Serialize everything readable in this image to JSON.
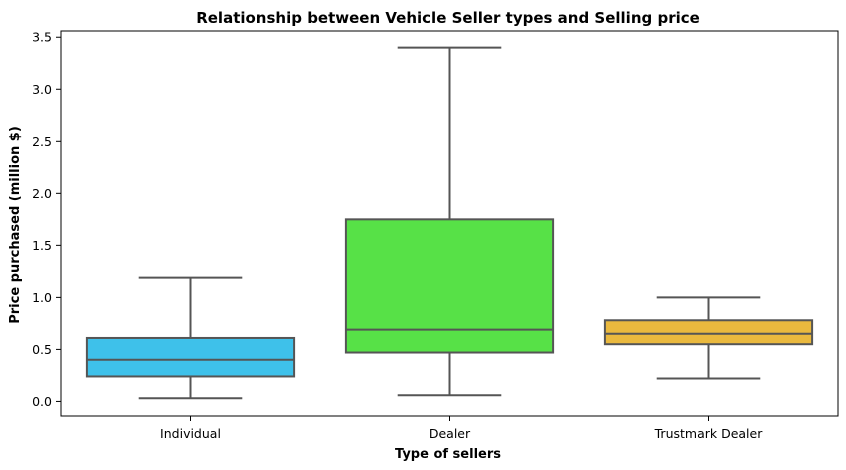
{
  "chart_data": {
    "type": "box",
    "title": "Relationship between Vehicle Seller types and Selling price",
    "xlabel": "Type of sellers",
    "ylabel": "Price purchased (million $)",
    "ylim": [
      -0.14,
      3.56
    ],
    "yticks": [
      0.0,
      0.5,
      1.0,
      1.5,
      2.0,
      2.5,
      3.0,
      3.5
    ],
    "ytick_labels": [
      "0.0",
      "0.5",
      "1.0",
      "1.5",
      "2.0",
      "2.5",
      "3.0",
      "3.5"
    ],
    "categories": [
      "Individual",
      "Dealer",
      "Trustmark Dealer"
    ],
    "boxes": [
      {
        "category": "Individual",
        "whisker_low": 0.03,
        "q1": 0.24,
        "median": 0.4,
        "q3": 0.61,
        "whisker_high": 1.19,
        "color": "#3ec1ea"
      },
      {
        "category": "Dealer",
        "whisker_low": 0.06,
        "q1": 0.47,
        "median": 0.69,
        "q3": 1.75,
        "whisker_high": 3.4,
        "color": "#57e147"
      },
      {
        "category": "Trustmark Dealer",
        "whisker_low": 0.22,
        "q1": 0.55,
        "median": 0.65,
        "q3": 0.78,
        "whisker_high": 1.0,
        "color": "#eab93e"
      }
    ],
    "grid": false,
    "legend": "none"
  }
}
